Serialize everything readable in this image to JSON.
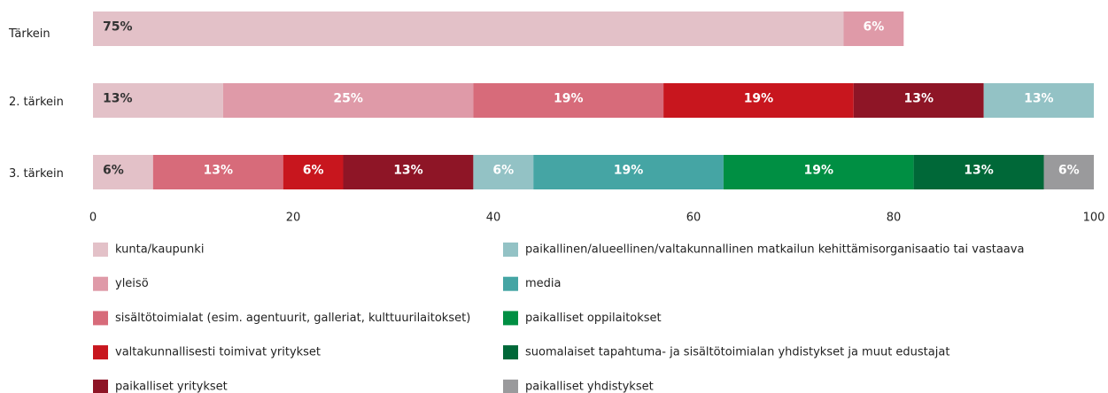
{
  "chart_data": {
    "type": "stacked-barh",
    "categories": [
      "Tärkein",
      "2. tärkein",
      "3. tärkein"
    ],
    "xlim": [
      0,
      100
    ],
    "xticks": [
      0,
      20,
      40,
      60,
      80,
      100
    ],
    "series": [
      {
        "name": "kunta/kaupunki",
        "color": "#e3c1c8",
        "values": [
          75,
          13,
          6
        ],
        "value_labels": [
          "75%",
          "13%",
          "6%"
        ]
      },
      {
        "name": "yleisö",
        "color": "#df9aa8",
        "values": [
          6,
          25,
          null
        ],
        "value_labels": [
          "6%",
          "25%",
          null
        ]
      },
      {
        "name": "sisältötoimialat (esim. agentuurit, galleriat, kulttuurilaitokset)",
        "color": "#d76b7a",
        "values": [
          null,
          19,
          13
        ],
        "value_labels": [
          null,
          "19%",
          "13%"
        ]
      },
      {
        "name": "valtakunnallisesti toimivat yritykset",
        "color": "#c8161e",
        "values": [
          null,
          19,
          6
        ],
        "value_labels": [
          null,
          "19%",
          "6%"
        ]
      },
      {
        "name": "paikalliset yritykset",
        "color": "#8e1526",
        "values": [
          null,
          13,
          13
        ],
        "value_labels": [
          null,
          "13%",
          "13%"
        ]
      },
      {
        "name": "paikallinen/alueellinen/valtakunnallinen matkailun kehittämisorganisaatio tai vastaava",
        "color": "#93c2c5",
        "values": [
          null,
          13,
          6
        ],
        "value_labels": [
          null,
          "13%",
          "6%"
        ]
      },
      {
        "name": "media",
        "color": "#45a5a4",
        "values": [
          null,
          null,
          19
        ],
        "value_labels": [
          null,
          null,
          "19%"
        ]
      },
      {
        "name": "paikalliset oppilaitokset",
        "color": "#008f43",
        "values": [
          null,
          null,
          19
        ],
        "value_labels": [
          null,
          null,
          "19%"
        ]
      },
      {
        "name": "suomalaiset tapahtuma- ja sisältötoimialan yhdistykset ja muut edustajat",
        "color": "#006838",
        "values": [
          null,
          null,
          13
        ],
        "value_labels": [
          null,
          null,
          "13%"
        ]
      },
      {
        "name": "paikalliset yhdistykset",
        "color": "#9a9a9c",
        "values": [
          null,
          null,
          6
        ],
        "value_labels": [
          null,
          null,
          "6%"
        ]
      }
    ]
  }
}
